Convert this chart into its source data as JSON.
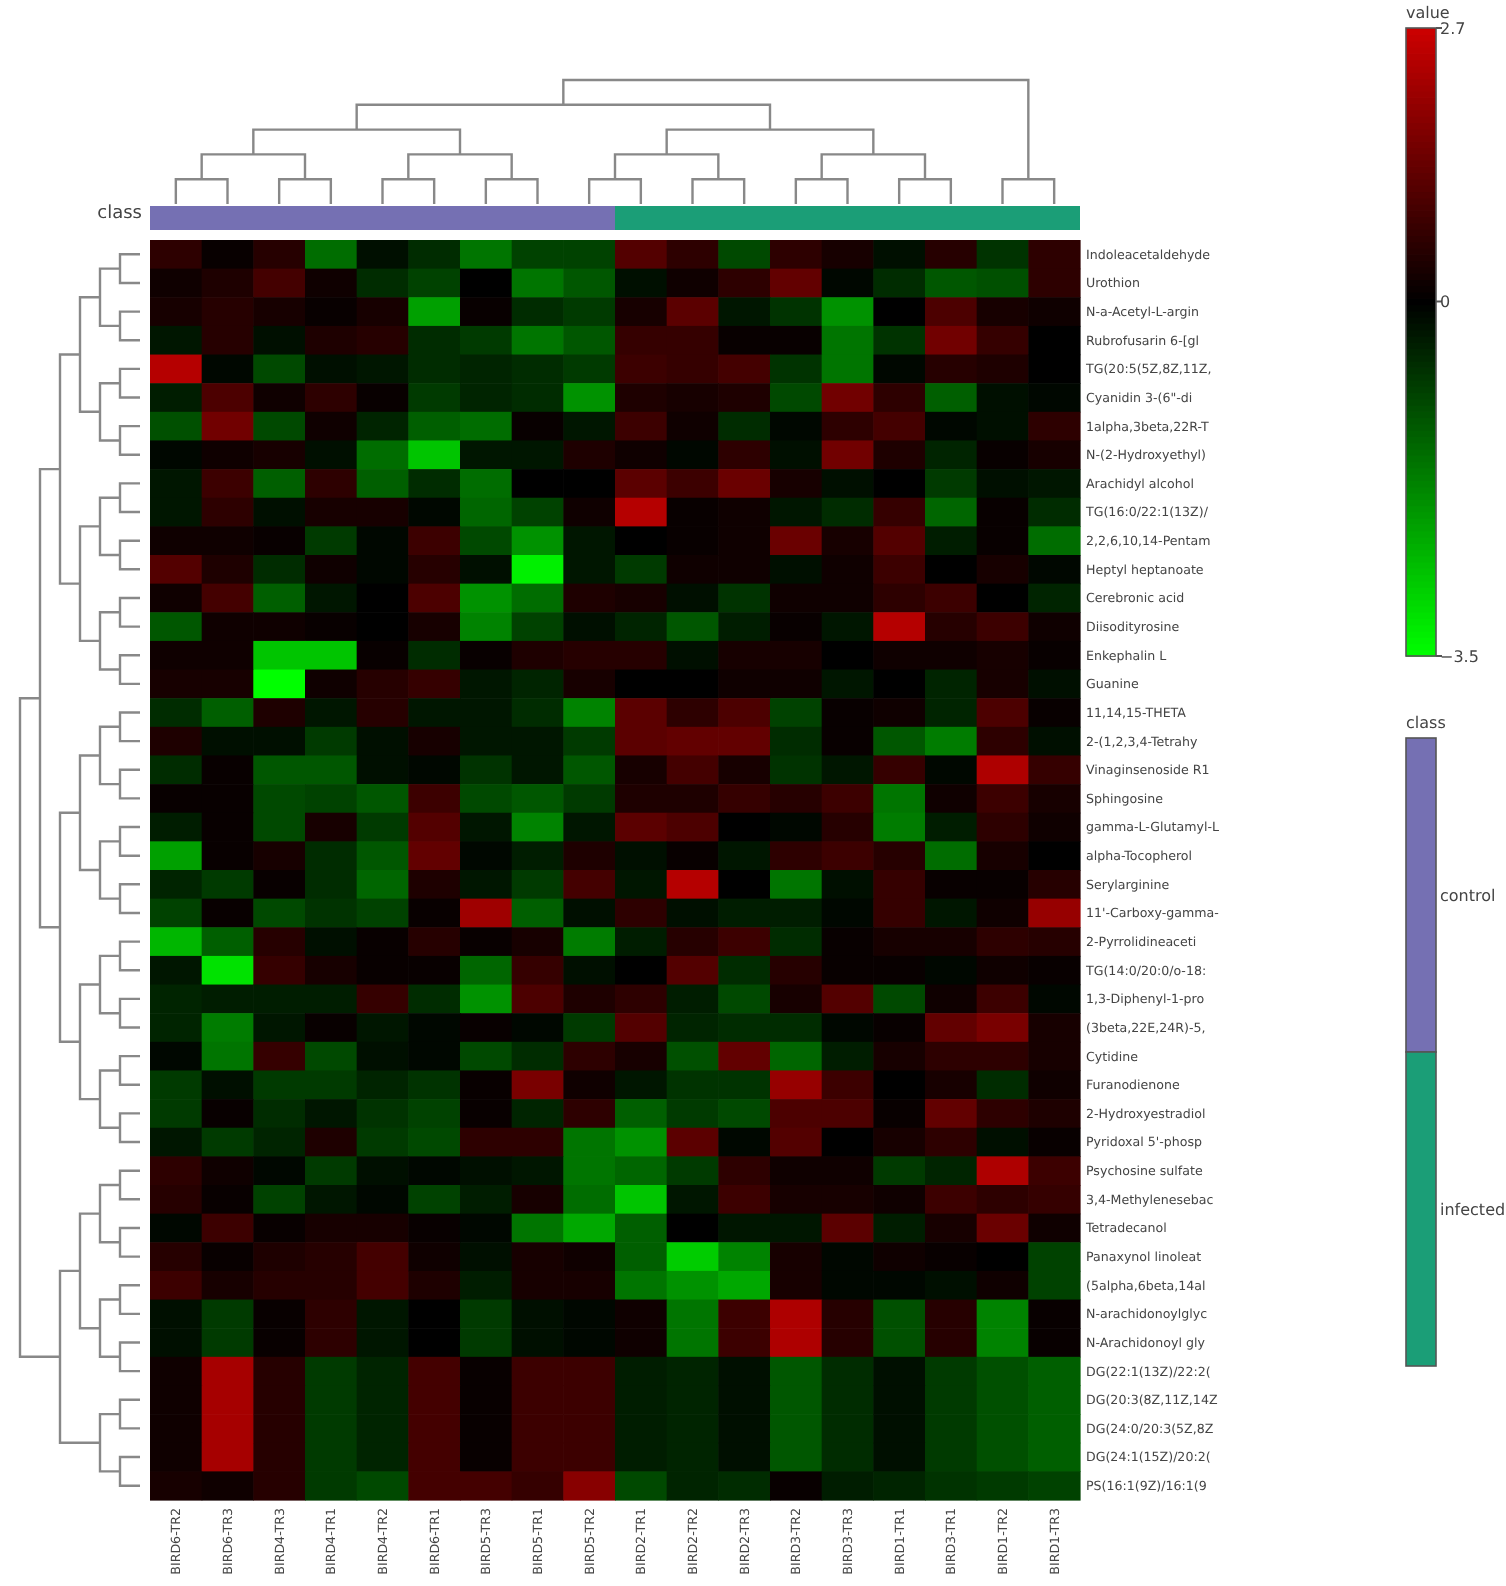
{
  "chart_data": [
    {
      "type": "heatmap",
      "categories": [
        "BIRD6-TR2",
        "BIRD6-TR3",
        "BIRD4-TR3",
        "BIRD4-TR1",
        "BIRD4-TR2",
        "BIRD6-TR1",
        "BIRD5-TR3",
        "BIRD5-TR1",
        "BIRD5-TR2",
        "BIRD2-TR1",
        "BIRD2-TR2",
        "BIRD2-TR3",
        "BIRD3-TR2",
        "BIRD3-TR3",
        "BIRD1-TR1",
        "BIRD3-TR1",
        "BIRD1-TR2",
        "BIRD1-TR3"
      ],
      "y_categories": [
        "Indoleacetaldehyde",
        "Urothion",
        "N-a-Acetyl-L-argin",
        "Rubrofusarin 6-[gl",
        "TG(20:5(5Z,8Z,11Z,",
        "Cyanidin 3-(6\"-di",
        "1alpha,3beta,22R-T",
        "N-(2-Hydroxyethyl)",
        "Arachidyl alcohol",
        "TG(16:0/22:1(13Z)/",
        "2,2,6,10,14-Pentam",
        "Heptyl heptanoate",
        "Cerebronic acid",
        "Diisodityrosine",
        "Enkephalin L",
        "Guanine",
        "11,14,15-THETA",
        "2-(1,2,3,4-Tetrahy",
        "Vinaginsenoside R1",
        "Sphingosine",
        "gamma-L-Glutamyl-L",
        "alpha-Tocopherol",
        "Serylarginine",
        "11'-Carboxy-gamma-",
        "2-Pyrrolidineaceti",
        "TG(14:0/20:0/o-18:",
        "1,3-Diphenyl-1-pro",
        "(3beta,22E,24R)-5,",
        "Cytidine",
        "Furanodienone",
        "2-Hydroxyestradiol",
        "Pyridoxal 5'-phosp",
        "Psychosine sulfate",
        "3,4-Methylenesebac",
        "Tetradecanol",
        "Panaxynol linoleat",
        "(5alpha,6beta,14al",
        "N-arachidonoylglyc",
        "N-Arachidonoyl gly",
        "DG(22:1(13Z)/22:2(",
        "DG(20:3(8Z,11Z,14Z",
        "DG(24:0/20:3(5Z,8Z",
        "DG(24:1(15Z)/20:2(",
        "PS(16:1(9Z)/16:1(9"
      ],
      "cells": [
        [
          0.6,
          0.1,
          0.5,
          -1.5,
          -0.2,
          -0.6,
          -1.6,
          -0.9,
          -0.9,
          1.1,
          0.6,
          -1.0,
          0.6,
          0.3,
          -0.2,
          0.5,
          -0.7,
          0.6
        ],
        [
          0.2,
          0.4,
          0.9,
          0.2,
          -0.6,
          -0.9,
          0.0,
          -1.6,
          -1.2,
          -0.2,
          0.2,
          0.6,
          1.3,
          -0.1,
          -0.6,
          -1.2,
          -1.1,
          0.6
        ],
        [
          0.3,
          0.5,
          0.3,
          0.1,
          0.3,
          -2.2,
          0.1,
          -0.6,
          -0.8,
          0.3,
          1.2,
          -0.3,
          -0.7,
          -2.0,
          0.0,
          1.0,
          0.3,
          0.2
        ],
        [
          -0.3,
          0.5,
          -0.2,
          0.4,
          0.5,
          -0.6,
          -0.8,
          -1.6,
          -1.2,
          0.7,
          0.7,
          0.1,
          0.1,
          -1.6,
          -0.7,
          1.5,
          0.7,
          0.0
        ],
        [
          2.4,
          -0.1,
          -1.0,
          -0.2,
          -0.3,
          -0.6,
          -0.5,
          -0.6,
          -0.8,
          0.8,
          0.7,
          0.9,
          -0.7,
          -1.6,
          -0.1,
          0.5,
          0.4,
          0.0
        ],
        [
          -0.4,
          1.0,
          0.2,
          0.6,
          0.1,
          -0.8,
          -0.5,
          -0.6,
          -2.0,
          0.4,
          0.3,
          0.4,
          -1.0,
          1.5,
          0.6,
          -1.3,
          -0.2,
          -0.1
        ],
        [
          -1.1,
          1.5,
          -1.0,
          0.2,
          -0.5,
          -1.3,
          -1.5,
          0.1,
          -0.3,
          0.8,
          0.2,
          -0.6,
          -0.1,
          0.6,
          0.9,
          -0.1,
          -0.2,
          0.6
        ],
        [
          -0.1,
          0.2,
          0.3,
          -0.2,
          -1.5,
          -2.7,
          -0.3,
          -0.3,
          0.4,
          0.2,
          -0.1,
          0.6,
          -0.2,
          1.5,
          0.4,
          -0.5,
          0.1,
          0.3
        ],
        [
          -0.3,
          0.8,
          -1.3,
          0.6,
          -1.3,
          -0.6,
          -1.5,
          0.0,
          0.0,
          1.2,
          0.8,
          1.4,
          0.3,
          -0.2,
          0.0,
          -0.8,
          -0.2,
          -0.3
        ],
        [
          -0.3,
          0.6,
          -0.2,
          0.3,
          0.3,
          -0.1,
          -1.4,
          -0.9,
          0.2,
          2.4,
          0.1,
          0.2,
          -0.3,
          -0.6,
          0.7,
          -1.4,
          0.1,
          -0.6
        ],
        [
          0.2,
          0.2,
          0.1,
          -0.8,
          -0.1,
          0.8,
          -1.0,
          -2.0,
          -0.3,
          0.0,
          0.1,
          0.2,
          1.4,
          0.3,
          1.1,
          -0.4,
          0.1,
          -1.5
        ],
        [
          1.1,
          0.4,
          -0.6,
          0.2,
          -0.1,
          0.5,
          -0.2,
          -3.3,
          -0.3,
          -0.8,
          0.2,
          0.2,
          -0.2,
          0.2,
          0.8,
          0.0,
          0.3,
          -0.1
        ],
        [
          0.2,
          0.9,
          -1.3,
          -0.3,
          0.0,
          1.0,
          -2.0,
          -1.5,
          0.4,
          0.3,
          -0.2,
          -0.7,
          0.2,
          0.2,
          0.6,
          0.8,
          0.0,
          -0.5
        ],
        [
          -1.2,
          0.2,
          0.2,
          0.1,
          0.0,
          0.3,
          -1.8,
          -0.9,
          -0.2,
          -0.5,
          -1.2,
          -0.4,
          0.1,
          -0.3,
          2.4,
          0.5,
          0.8,
          0.2
        ],
        [
          0.2,
          0.2,
          -2.7,
          -2.7,
          0.1,
          -0.6,
          0.1,
          0.4,
          0.5,
          0.5,
          -0.2,
          0.3,
          0.3,
          0.0,
          0.2,
          0.2,
          0.3,
          0.1
        ],
        [
          0.3,
          0.3,
          -3.5,
          0.2,
          0.5,
          0.7,
          -0.3,
          -0.5,
          0.3,
          0.0,
          0.0,
          0.2,
          0.2,
          -0.3,
          0.0,
          -0.5,
          0.3,
          -0.2
        ],
        [
          -0.6,
          -1.3,
          0.4,
          -0.3,
          0.5,
          -0.3,
          -0.3,
          -0.6,
          -1.8,
          1.2,
          0.6,
          1.0,
          -0.9,
          0.1,
          0.2,
          -0.5,
          1.0,
          0.1
        ],
        [
          0.4,
          -0.2,
          -0.2,
          -0.8,
          -0.2,
          0.3,
          -0.3,
          -0.3,
          -0.8,
          1.2,
          1.3,
          1.3,
          -0.6,
          0.1,
          -1.2,
          -1.7,
          0.6,
          -0.2
        ],
        [
          -0.6,
          0.1,
          -1.2,
          -1.2,
          -0.2,
          -0.1,
          -0.7,
          -0.3,
          -1.2,
          0.3,
          0.9,
          0.3,
          -0.7,
          -0.3,
          0.7,
          -0.1,
          2.3,
          0.7
        ],
        [
          0.1,
          0.1,
          -1.0,
          -0.9,
          -1.2,
          0.8,
          -1.0,
          -1.2,
          -0.8,
          0.4,
          0.4,
          0.7,
          0.5,
          0.8,
          -1.6,
          0.2,
          0.8,
          0.3
        ],
        [
          -0.4,
          0.1,
          -1.0,
          0.3,
          -0.8,
          1.1,
          -0.3,
          -1.8,
          -0.3,
          1.2,
          1.0,
          0.0,
          -0.1,
          0.5,
          -1.7,
          -0.4,
          0.6,
          0.2
        ],
        [
          -2.2,
          0.1,
          0.3,
          -0.6,
          -1.2,
          1.3,
          -0.1,
          -0.4,
          0.4,
          -0.2,
          0.1,
          -0.3,
          0.6,
          0.8,
          0.5,
          -1.5,
          0.3,
          0.0
        ],
        [
          -0.5,
          -0.8,
          0.1,
          -0.6,
          -1.4,
          0.4,
          -0.3,
          -0.8,
          0.9,
          -0.3,
          2.4,
          0.0,
          -1.6,
          -0.2,
          0.7,
          0.1,
          0.1,
          0.5
        ],
        [
          -0.9,
          0.1,
          -1.0,
          -0.7,
          -0.9,
          0.1,
          2.1,
          -1.3,
          -0.2,
          0.6,
          -0.2,
          -0.4,
          -0.4,
          -0.1,
          0.7,
          -0.3,
          0.2,
          2.0
        ],
        [
          -2.5,
          -1.3,
          0.5,
          -0.2,
          0.1,
          0.5,
          0.1,
          0.3,
          -1.7,
          -0.4,
          0.5,
          0.8,
          -0.6,
          0.1,
          0.3,
          0.3,
          0.6,
          0.5
        ],
        [
          -0.3,
          -3.1,
          0.7,
          0.3,
          0.1,
          0.1,
          -1.4,
          0.7,
          -0.2,
          0.0,
          1.1,
          -0.6,
          0.5,
          0.1,
          0.1,
          -0.1,
          0.2,
          0.1
        ],
        [
          -0.5,
          -0.4,
          -0.4,
          -0.4,
          0.7,
          -0.6,
          -2.0,
          1.0,
          0.4,
          0.6,
          -0.4,
          -1.0,
          0.3,
          1.1,
          -1.0,
          0.2,
          0.8,
          -0.1
        ],
        [
          -0.5,
          -1.7,
          -0.3,
          0.1,
          -0.3,
          -0.1,
          0.1,
          -0.1,
          -0.8,
          1.1,
          -0.5,
          -0.6,
          -0.6,
          -0.1,
          0.1,
          1.3,
          1.6,
          0.3
        ],
        [
          -0.1,
          -1.6,
          0.7,
          -1.0,
          -0.2,
          -0.1,
          -1.0,
          -0.6,
          0.6,
          0.3,
          -1.1,
          1.3,
          -1.4,
          -0.4,
          0.3,
          0.6,
          0.6,
          0.3
        ],
        [
          -0.8,
          -0.2,
          -0.8,
          -0.8,
          -0.5,
          -0.7,
          0.1,
          1.6,
          0.2,
          -0.3,
          -0.7,
          -0.7,
          2.0,
          0.8,
          0.0,
          0.3,
          -0.6,
          0.2
        ],
        [
          -0.8,
          0.1,
          -0.6,
          -0.3,
          -0.7,
          -0.9,
          0.1,
          -0.5,
          0.6,
          -1.3,
          -0.8,
          -1.0,
          1.0,
          1.0,
          0.1,
          1.3,
          0.6,
          0.4
        ],
        [
          -0.3,
          -0.8,
          -0.5,
          0.4,
          -0.8,
          -1.0,
          0.6,
          0.6,
          -1.6,
          -2.0,
          1.2,
          -0.1,
          1.1,
          0.0,
          0.3,
          0.6,
          -0.2,
          0.1
        ],
        [
          0.6,
          0.2,
          -0.1,
          -0.8,
          -0.2,
          -0.1,
          -0.2,
          -0.3,
          -1.6,
          -1.4,
          -0.8,
          0.6,
          0.2,
          0.2,
          -0.8,
          -0.5,
          2.3,
          0.8
        ],
        [
          0.5,
          0.1,
          -0.9,
          -0.3,
          -0.1,
          -0.9,
          -0.4,
          0.3,
          -1.5,
          -2.7,
          -0.3,
          0.8,
          0.3,
          0.3,
          0.2,
          0.8,
          0.6,
          0.7
        ],
        [
          -0.1,
          0.8,
          0.1,
          0.3,
          0.3,
          0.1,
          -0.1,
          -1.6,
          -2.3,
          -1.3,
          0.0,
          -0.3,
          -0.3,
          1.2,
          -0.4,
          0.3,
          1.4,
          0.2
        ],
        [
          0.5,
          0.1,
          0.4,
          0.5,
          0.9,
          0.2,
          -0.2,
          0.3,
          0.2,
          -1.3,
          -2.8,
          -1.8,
          0.3,
          -0.1,
          0.2,
          0.1,
          0.0,
          -0.9
        ],
        [
          0.8,
          0.3,
          0.5,
          0.5,
          0.9,
          0.4,
          -0.4,
          0.3,
          0.3,
          -1.6,
          -2.0,
          -2.3,
          0.3,
          -0.1,
          -0.1,
          -0.2,
          0.2,
          -0.9
        ],
        [
          -0.2,
          -0.8,
          0.1,
          0.6,
          -0.3,
          0.0,
          -0.8,
          -0.2,
          -0.1,
          0.2,
          -1.6,
          0.8,
          2.3,
          0.5,
          -1.1,
          0.5,
          -1.8,
          0.1
        ],
        [
          -0.2,
          -0.8,
          0.1,
          0.6,
          -0.3,
          0.0,
          -0.8,
          -0.2,
          -0.1,
          0.2,
          -1.6,
          0.8,
          2.3,
          0.5,
          -1.1,
          0.5,
          -1.8,
          0.1
        ],
        [
          0.2,
          2.2,
          0.5,
          -0.8,
          -0.5,
          0.9,
          0.1,
          0.8,
          0.8,
          -0.4,
          -0.5,
          -0.2,
          -1.2,
          -0.6,
          -0.2,
          -0.8,
          -1.1,
          -1.3
        ],
        [
          0.2,
          2.2,
          0.5,
          -0.8,
          -0.5,
          0.9,
          0.1,
          0.8,
          0.8,
          -0.4,
          -0.5,
          -0.2,
          -1.2,
          -0.6,
          -0.2,
          -0.8,
          -1.1,
          -1.3
        ],
        [
          0.2,
          2.2,
          0.5,
          -0.8,
          -0.5,
          0.9,
          0.1,
          0.8,
          0.8,
          -0.4,
          -0.5,
          -0.2,
          -1.2,
          -0.6,
          -0.2,
          -0.8,
          -1.1,
          -1.3
        ],
        [
          0.2,
          2.2,
          0.5,
          -0.8,
          -0.5,
          0.9,
          0.1,
          0.8,
          0.8,
          -0.4,
          -0.5,
          -0.2,
          -1.2,
          -0.6,
          -0.2,
          -0.8,
          -1.1,
          -1.3
        ],
        [
          0.3,
          0.2,
          0.5,
          -0.8,
          -1.0,
          0.9,
          0.9,
          0.7,
          1.8,
          -1.0,
          -0.5,
          -0.6,
          0.1,
          -0.4,
          -0.5,
          -0.7,
          -0.8,
          -0.9
        ]
      ],
      "clabel": "value",
      "clim": [
        -3.5,
        2.7
      ],
      "cticks": [
        {
          "value": -3.5,
          "label": "−3.5"
        },
        0,
        2.7
      ]
    },
    {
      "type": "other",
      "title": "class",
      "annotations": [
        "control",
        "infected"
      ]
    }
  ]
}
